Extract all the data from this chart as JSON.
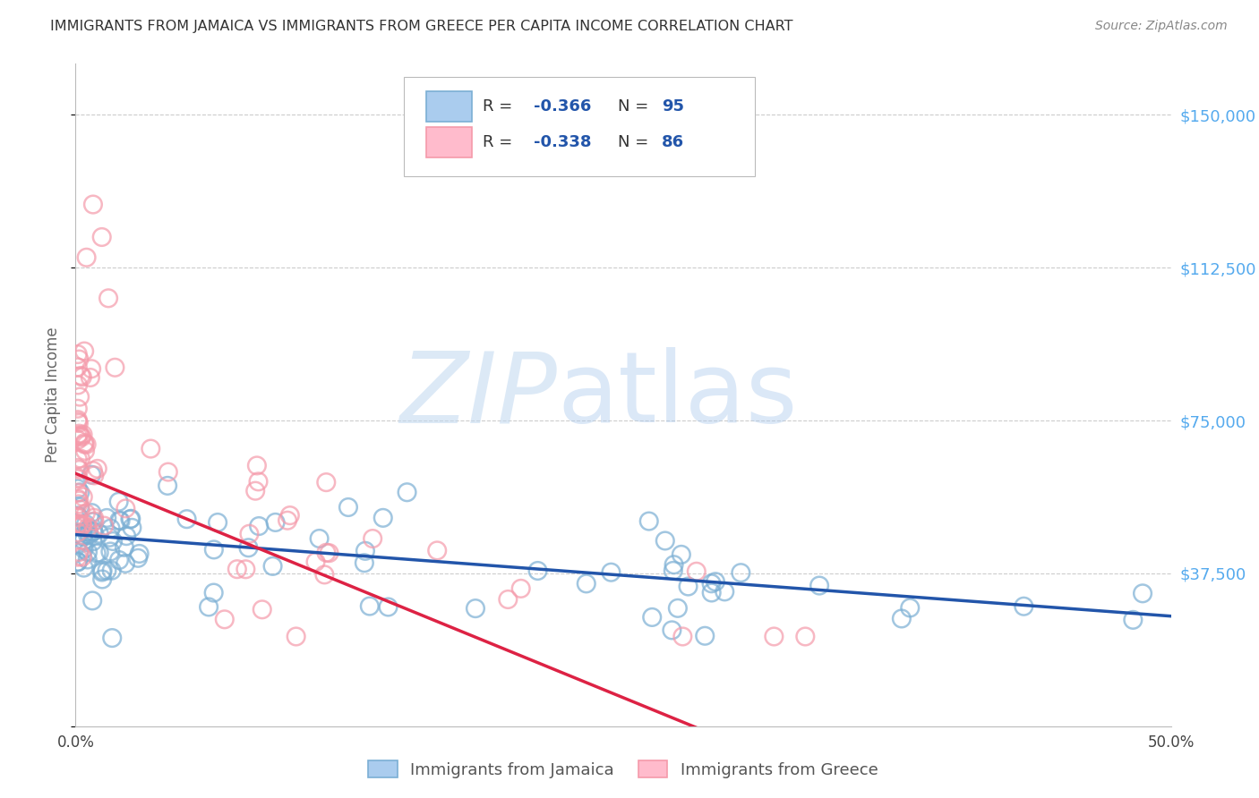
{
  "title": "IMMIGRANTS FROM JAMAICA VS IMMIGRANTS FROM GREECE PER CAPITA INCOME CORRELATION CHART",
  "source": "Source: ZipAtlas.com",
  "ylabel": "Per Capita Income",
  "xlim": [
    0.0,
    0.5
  ],
  "ylim": [
    0,
    162500
  ],
  "yticks": [
    0,
    37500,
    75000,
    112500,
    150000
  ],
  "ytick_labels": [
    "",
    "$37,500",
    "$75,000",
    "$112,500",
    "$150,000"
  ],
  "xticks": [
    0.0,
    0.1,
    0.2,
    0.3,
    0.4,
    0.5
  ],
  "xtick_labels": [
    "0.0%",
    "",
    "",
    "",
    "",
    "50.0%"
  ],
  "jamaica_color": "#7bafd4",
  "jamaica_edge_color": "#5588bb",
  "greece_color": "#f59aaa",
  "greece_edge_color": "#e06070",
  "jamaica_line_color": "#2255aa",
  "greece_line_color": "#dd2244",
  "jamaica_R": "-0.366",
  "jamaica_N": "95",
  "greece_R": "-0.338",
  "greece_N": "86",
  "watermark_zip": "ZIP",
  "watermark_atlas": "atlas",
  "background_color": "#ffffff",
  "grid_color": "#cccccc",
  "legend_label_jamaica": "Immigrants from Jamaica",
  "legend_label_greece": "Immigrants from Greece",
  "title_color": "#333333",
  "source_color": "#888888",
  "right_axis_color": "#55aaee",
  "ylabel_color": "#666666"
}
